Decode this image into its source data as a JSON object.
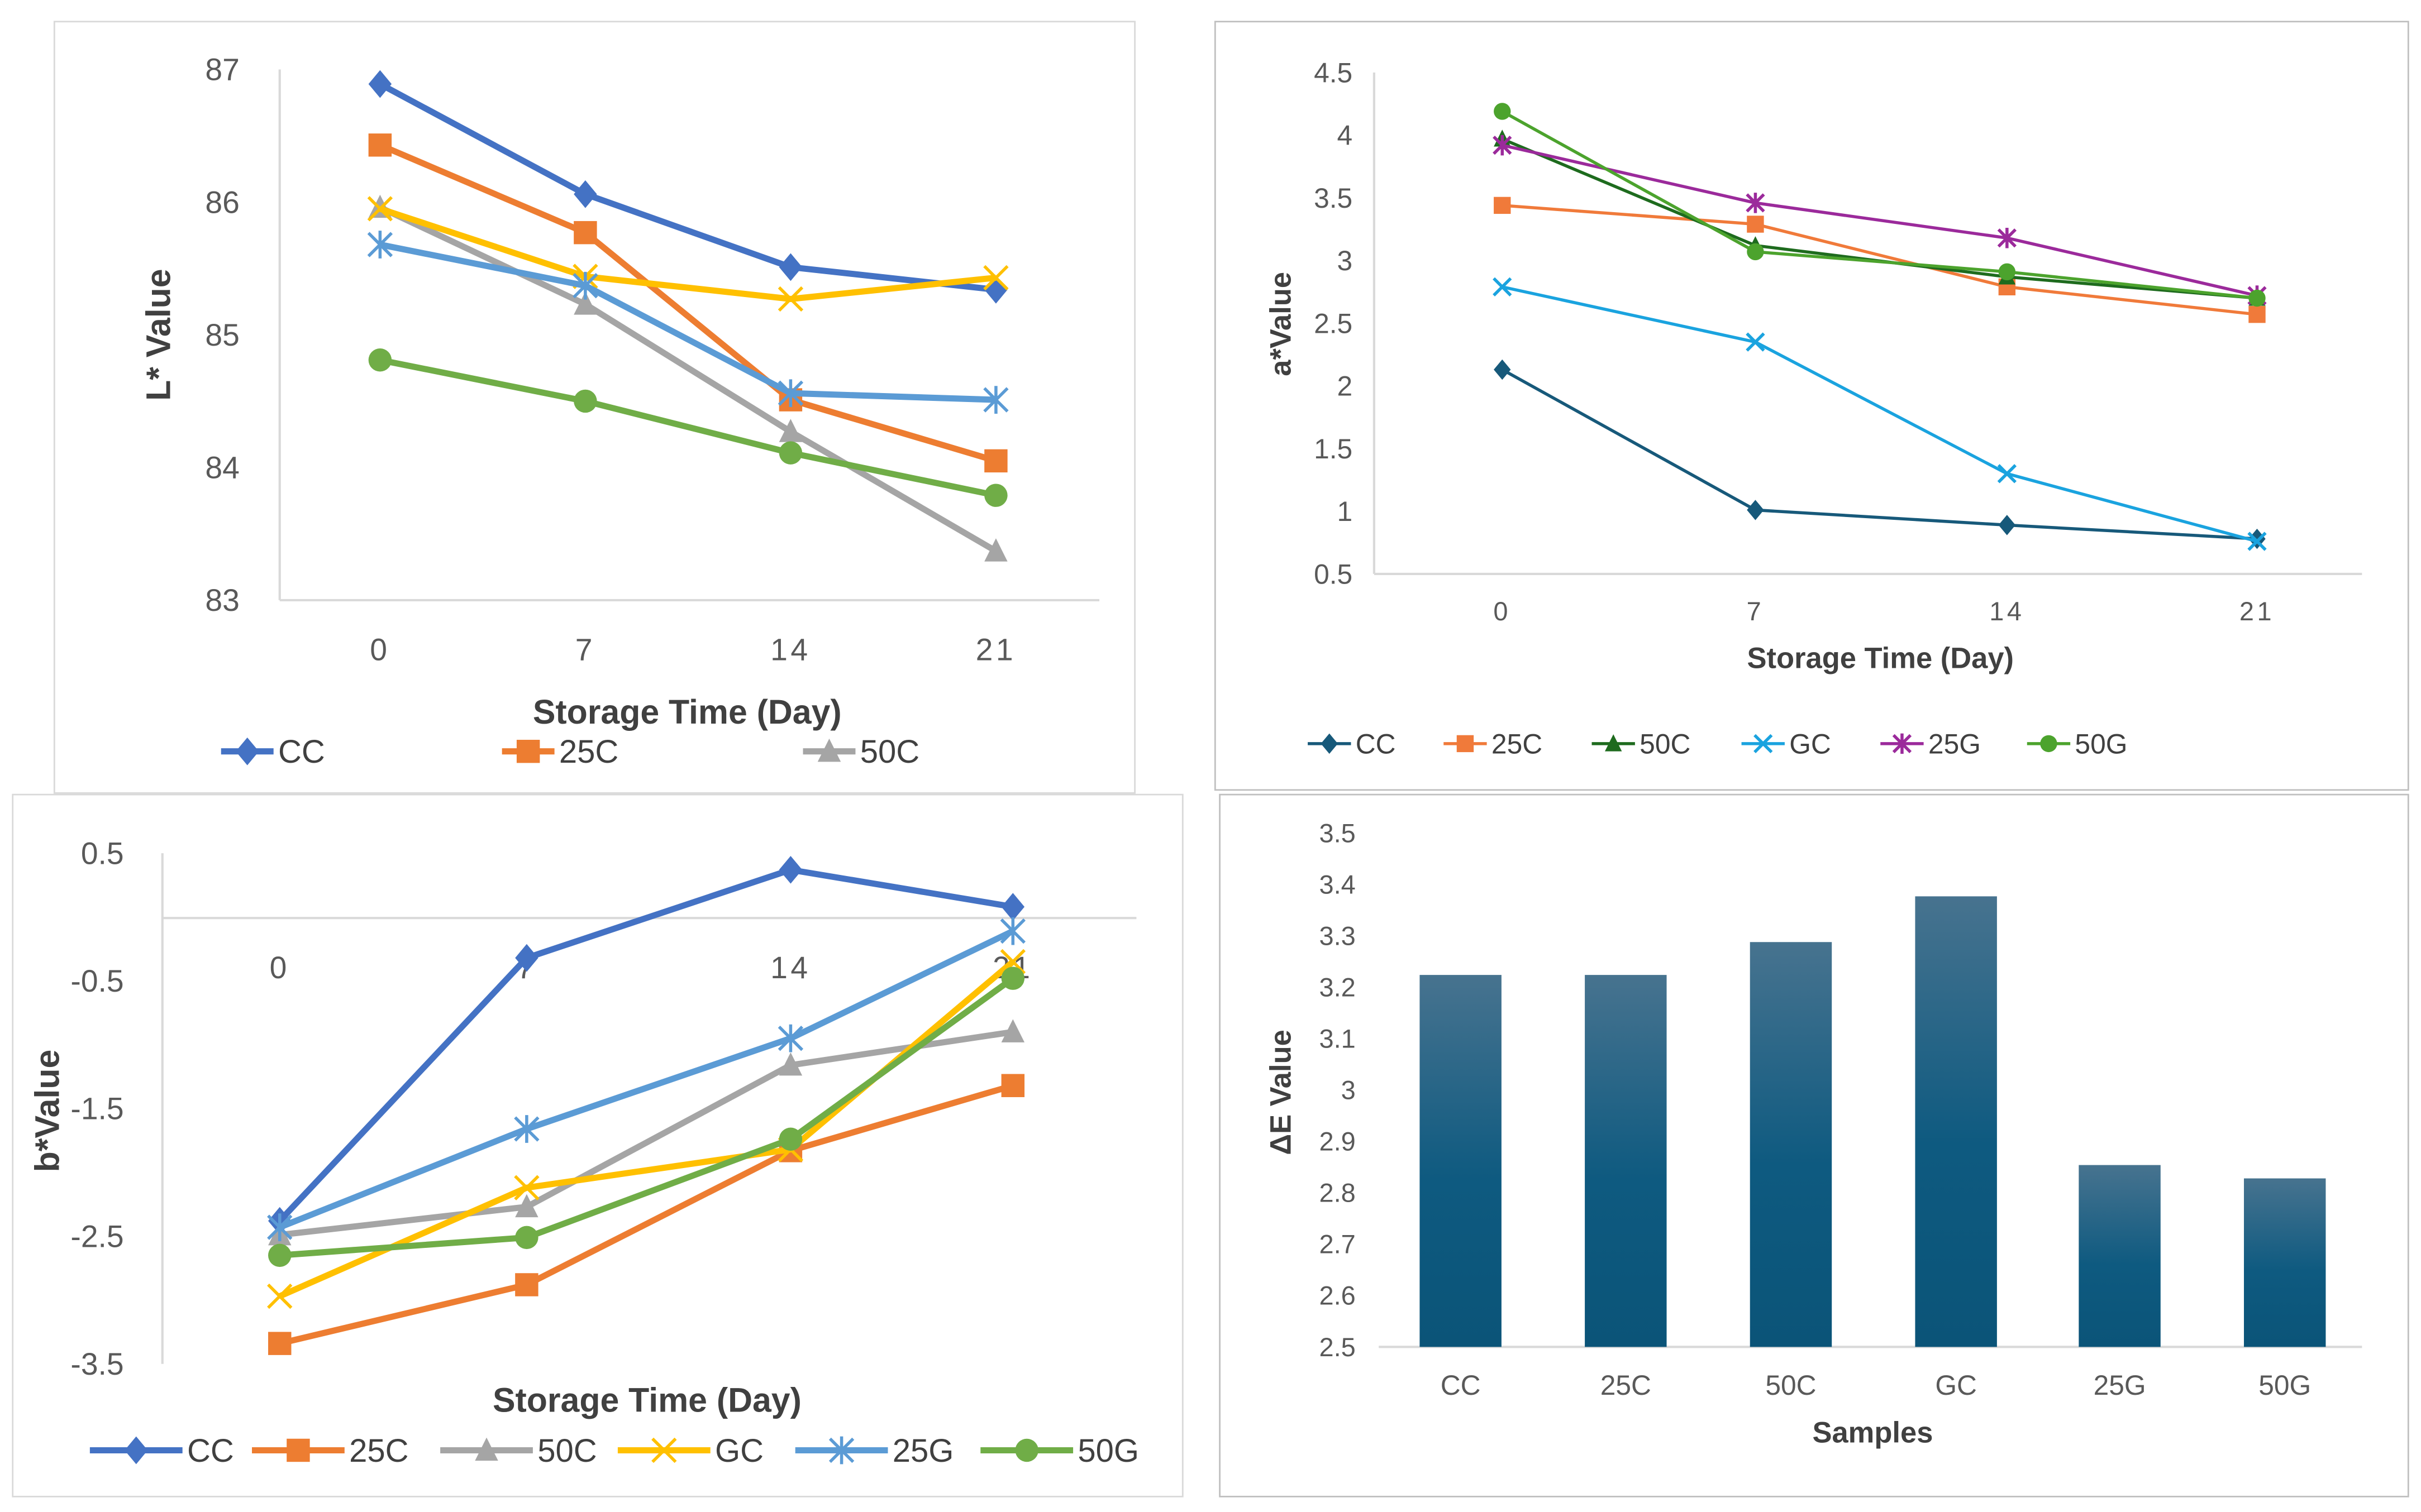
{
  "chart_data": [
    {
      "type": "line",
      "xlabel": "Storage Time (Day)",
      "ylabel": "L* Value",
      "categories": [
        "0",
        "7",
        "14",
        "21"
      ],
      "ylim": [
        83,
        87
      ],
      "y_ticks": [
        "83",
        "84",
        "85",
        "86",
        "87"
      ],
      "grid": false,
      "legend": "bottom",
      "series": [
        {
          "name": "CC",
          "color": "#4472C4",
          "marker": "diamond",
          "values": [
            86.89,
            86.06,
            85.51,
            85.34
          ]
        },
        {
          "name": "25C",
          "color": "#ED7D31",
          "marker": "square",
          "values": [
            86.43,
            85.77,
            84.51,
            84.05
          ]
        },
        {
          "name": "50C",
          "color": "#A5A5A5",
          "marker": "triangle",
          "values": [
            85.96,
            85.23,
            84.27,
            83.37
          ]
        },
        {
          "color": "#FFC000",
          "marker": "x",
          "values": [
            85.95,
            85.44,
            85.27,
            85.43
          ]
        },
        {
          "color": "#5B9BD5",
          "marker": "star",
          "values": [
            85.68,
            85.37,
            84.56,
            84.51
          ]
        },
        {
          "color": "#70AD47",
          "marker": "circle",
          "values": [
            84.81,
            84.5,
            84.11,
            83.79
          ]
        }
      ]
    },
    {
      "type": "line",
      "xlabel": "Storage Time (Day)",
      "ylabel": "a*Value",
      "categories": [
        "0",
        "7",
        "14",
        "21"
      ],
      "ylim": [
        0.5,
        4.5
      ],
      "y_ticks": [
        "0.5",
        "1",
        "1.5",
        "2",
        "2.5",
        "3",
        "3.5",
        "4",
        "4.5"
      ],
      "grid": false,
      "legend": "bottom",
      "series": [
        {
          "name": "CC",
          "color": "#17597A",
          "marker": "diamond",
          "values": [
            2.13,
            1.01,
            0.89,
            0.78
          ]
        },
        {
          "name": "25C",
          "color": "#F07A3A",
          "marker": "square",
          "values": [
            3.44,
            3.29,
            2.79,
            2.57
          ]
        },
        {
          "name": "50C",
          "color": "#1E6B1E",
          "marker": "triangle",
          "values": [
            3.97,
            3.12,
            2.87,
            2.7
          ]
        },
        {
          "name": "GC",
          "color": "#1AA3DF",
          "marker": "x",
          "values": [
            2.79,
            2.35,
            1.3,
            0.76
          ]
        },
        {
          "name": "25G",
          "color": "#9B2A9B",
          "marker": "star",
          "values": [
            3.92,
            3.46,
            3.18,
            2.72
          ]
        },
        {
          "name": "50G",
          "color": "#4CA32D",
          "marker": "circle",
          "values": [
            4.19,
            3.07,
            2.91,
            2.7
          ]
        }
      ]
    },
    {
      "type": "line",
      "xlabel": "Storage Time (Day)",
      "ylabel": "b*Value",
      "categories": [
        "0",
        "7",
        "14",
        "21"
      ],
      "ylim": [
        -3.5,
        0.5
      ],
      "y_ticks": [
        "-3.5",
        "-2.5",
        "-1.5",
        "-0.5",
        "0.5"
      ],
      "grid": false,
      "legend": "bottom",
      "series": [
        {
          "name": "CC",
          "color": "#4472C4",
          "marker": "diamond",
          "values": [
            -2.38,
            -0.32,
            0.37,
            0.08
          ]
        },
        {
          "name": "25C",
          "color": "#ED7D31",
          "marker": "square",
          "values": [
            -3.34,
            -2.88,
            -1.83,
            -1.32
          ]
        },
        {
          "name": "50C",
          "color": "#A5A5A5",
          "marker": "triangle",
          "values": [
            -2.49,
            -2.27,
            -1.16,
            -0.9
          ]
        },
        {
          "name": "GC",
          "color": "#FFC000",
          "marker": "x",
          "values": [
            -2.97,
            -2.12,
            -1.82,
            -0.35
          ]
        },
        {
          "name": "25G",
          "color": "#5B9BD5",
          "marker": "star",
          "values": [
            -2.43,
            -1.66,
            -0.95,
            -0.11
          ]
        },
        {
          "name": "50G",
          "color": "#70AD47",
          "marker": "circle",
          "values": [
            -2.65,
            -2.51,
            -1.74,
            -0.48
          ]
        }
      ]
    },
    {
      "type": "bar",
      "xlabel": "Samples",
      "ylabel": "ΔE Value",
      "categories": [
        "CC",
        "25C",
        "50C",
        "GC",
        "25G",
        "50G"
      ],
      "values": [
        3.224,
        3.224,
        3.288,
        3.377,
        2.854,
        2.828
      ],
      "ylim": [
        2.5,
        3.5
      ],
      "y_ticks": [
        "2.5",
        "2.6",
        "2.7",
        "2.8",
        "2.9",
        "3",
        "3.1",
        "3.2",
        "3.3",
        "3.4",
        "3.5"
      ],
      "color": "#0E5A80",
      "grid": false
    }
  ]
}
